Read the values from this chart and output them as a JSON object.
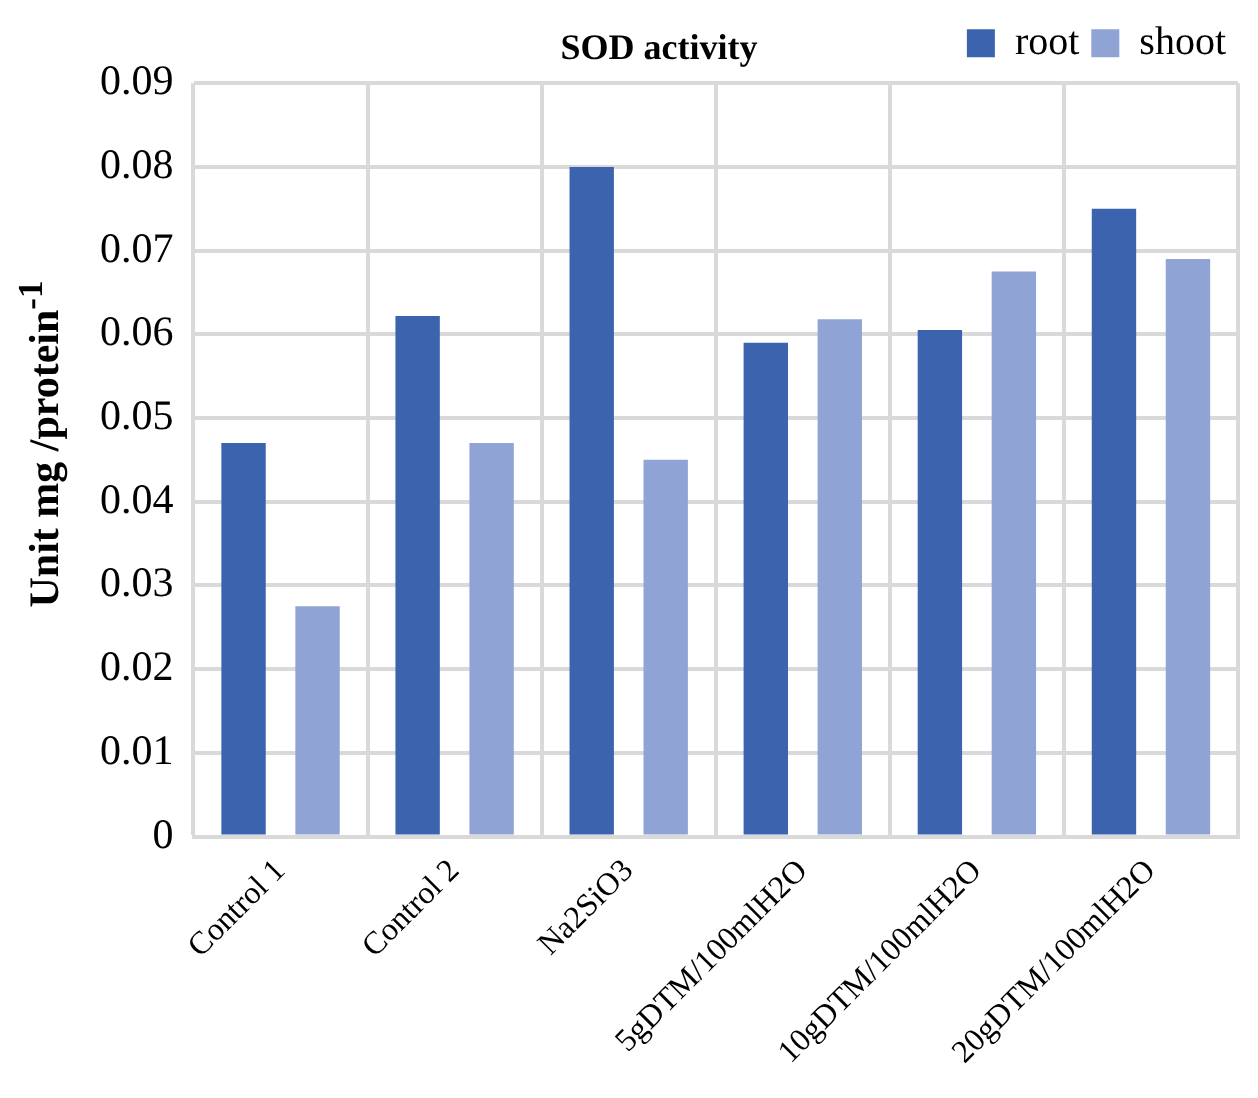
{
  "chart_data": {
    "type": "bar",
    "title": "SOD activity",
    "ylabel": "Unit mg /protein$^{-1}$",
    "categories": [
      "Control 1",
      "Control 2",
      "Na2SiO3",
      "5gDTM/100mlH2O",
      "10gDTM/100mlH2O",
      "20gDTM/100mlH2O"
    ],
    "series": [
      {
        "name": "root",
        "color": "#3c63ae",
        "values": [
          0.047,
          0.0622,
          0.08,
          0.059,
          0.0605,
          0.075
        ]
      },
      {
        "name": "shoot",
        "color": "#8fa3d5",
        "values": [
          0.0275,
          0.047,
          0.045,
          0.0618,
          0.0675,
          0.069
        ]
      }
    ],
    "ylim": [
      0,
      0.09
    ],
    "yticks": [
      0,
      0.01,
      0.02,
      0.03,
      0.04,
      0.05,
      0.06,
      0.07,
      0.08,
      0.09
    ],
    "grid": true,
    "legend": "top right"
  }
}
